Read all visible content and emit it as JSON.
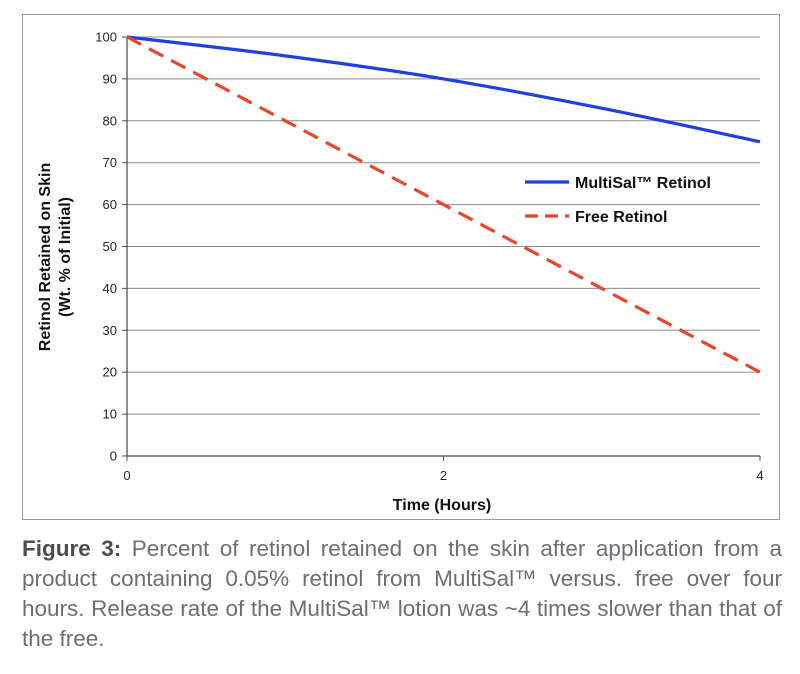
{
  "chart_data": {
    "type": "line",
    "xlabel": "Time (Hours)",
    "ylabel_lines": [
      "Retinol Retained on Skin",
      "(Wt. % of Initial)"
    ],
    "xlim": [
      0,
      4
    ],
    "ylim": [
      0,
      100
    ],
    "x_ticks": [
      0,
      2,
      4
    ],
    "y_ticks": [
      0,
      10,
      20,
      30,
      40,
      50,
      60,
      70,
      80,
      90,
      100
    ],
    "grid": "horizontal",
    "legend_position": "right",
    "series": [
      {
        "name": "MultiSal™ Retinol",
        "color": "#1f3fe0",
        "style": "solid",
        "x": [
          0,
          1,
          2,
          3,
          4
        ],
        "y": [
          100,
          95.5,
          90,
          83,
          75
        ]
      },
      {
        "name": "Free Retinol",
        "color": "#e8452c",
        "style": "dashed",
        "x": [
          0,
          1,
          2,
          3,
          4
        ],
        "y": [
          100,
          80,
          60,
          40,
          20
        ]
      }
    ]
  },
  "caption": {
    "label": "Figure 3:",
    "text": "Percent of retinol retained on the skin after application from a product containing 0.05% retinol from MultiSal™ versus. free over four hours. Release rate of the MultiSal™ lotion was ~4 times slower than that of the free."
  }
}
